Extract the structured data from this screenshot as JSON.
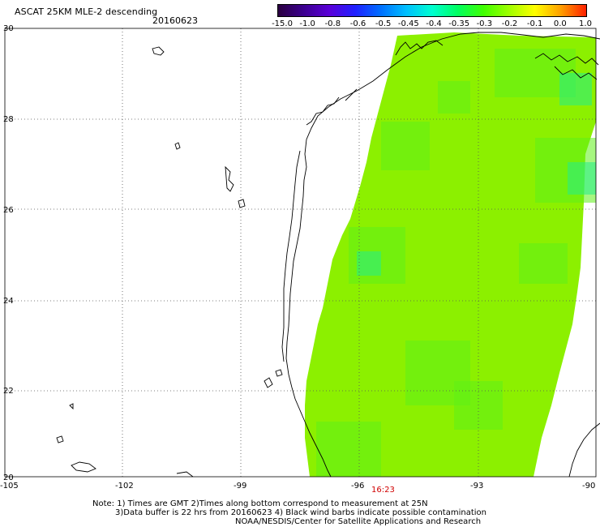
{
  "header": {
    "title": "ASCAT 25KM MLE-2 descending",
    "date": "20160623"
  },
  "colorbar": {
    "labels": [
      "-15.0",
      "-1.0",
      "-0.8",
      "-0.6",
      "-0.5",
      "-0.45",
      "-0.4",
      "-0.35",
      "-0.3",
      "-0.2",
      "-0.1",
      "0.0",
      "1.0"
    ],
    "colors": [
      "#2a0040",
      "#3c0090",
      "#5a00d8",
      "#2020ff",
      "#0070ff",
      "#00c0ff",
      "#00ffd0",
      "#00ff60",
      "#40ff00",
      "#a0ff00",
      "#ffff00",
      "#ffa000",
      "#ff2000"
    ]
  },
  "map": {
    "lat_labels": [
      "30",
      "28",
      "26",
      "24",
      "22",
      "20"
    ],
    "lon_labels": [
      "-105",
      "-102",
      "-99",
      "-96",
      "-93",
      "-90"
    ],
    "lat_range": [
      20,
      30
    ],
    "lon_range": [
      -105,
      -90
    ],
    "grid": true,
    "time_label": "16:23",
    "swath_color_main": "#8cf000",
    "swath_color_alt": "#5ef018",
    "swath_color_blue": "#22ee88"
  },
  "notes": {
    "line1": "Note: 1) Times are GMT 2)Times along bottom correspond to measurement at 25N",
    "line2": "3)Data buffer is 22 hrs from 20160623 4) Black wind barbs indicate possible contamination",
    "line3": "NOAA/NESDIS/Center for Satellite Applications and Research"
  }
}
